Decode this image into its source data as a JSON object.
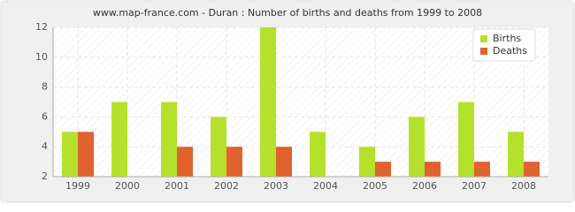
{
  "chart_data": {
    "type": "bar",
    "title": "www.map-france.com - Duran : Number of births and deaths from 1999 to 2008",
    "categories": [
      "1999",
      "2000",
      "2001",
      "2002",
      "2003",
      "2004",
      "2005",
      "2006",
      "2007",
      "2008"
    ],
    "series": [
      {
        "name": "Births",
        "color": "#b5e12d",
        "values": [
          5,
          7,
          7,
          6,
          12,
          5,
          4,
          6,
          7,
          5
        ]
      },
      {
        "name": "Deaths",
        "color": "#e0622e",
        "values": [
          5,
          2,
          4,
          4,
          4,
          2,
          3,
          3,
          3,
          3
        ]
      }
    ],
    "ylim": [
      2,
      12
    ],
    "yticks": [
      2,
      4,
      6,
      8,
      10,
      12
    ],
    "grid": true,
    "legend": "top-right"
  }
}
